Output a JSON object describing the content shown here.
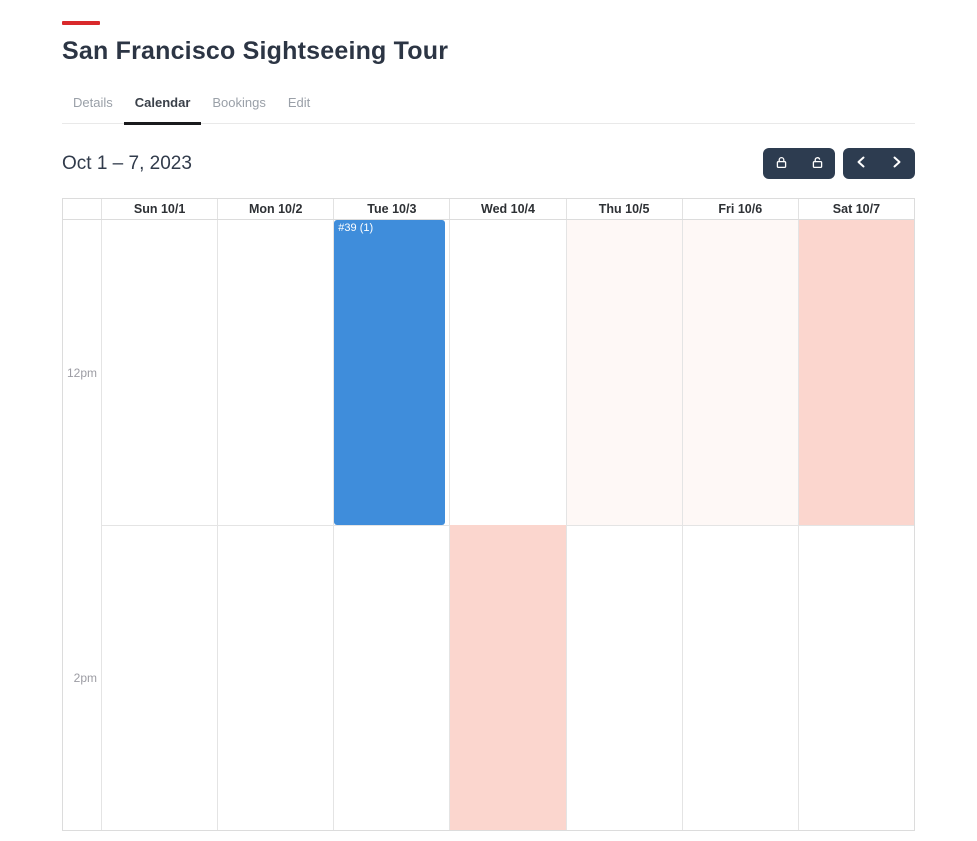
{
  "header": {
    "title": "San Francisco Sightseeing Tour"
  },
  "tabs": [
    {
      "label": "Details",
      "active": false
    },
    {
      "label": "Calendar",
      "active": true
    },
    {
      "label": "Bookings",
      "active": false
    },
    {
      "label": "Edit",
      "active": false
    }
  ],
  "toolbar": {
    "date_range": "Oct 1 – 7, 2023",
    "buttons": [
      {
        "name": "lock",
        "icon": "lock-icon"
      },
      {
        "name": "unlock",
        "icon": "unlock-icon"
      },
      {
        "name": "previous-week",
        "icon": "chevron-left-icon"
      },
      {
        "name": "next-week",
        "icon": "chevron-right-icon"
      }
    ]
  },
  "calendar": {
    "day_headers": [
      "Sun 10/1",
      "Mon 10/2",
      "Tue 10/3",
      "Wed 10/4",
      "Thu 10/5",
      "Fri 10/6",
      "Sat 10/7"
    ],
    "time_labels": [
      "12pm",
      "2pm"
    ],
    "events": [
      {
        "name": "booking-39",
        "type": "booking",
        "label": "#39 (1)",
        "day": 2,
        "slot": 0,
        "color": "#3f8ddb",
        "opacity": 1
      },
      {
        "name": "availability-sat",
        "type": "background",
        "label": "",
        "day": 6,
        "slot": 0,
        "color": "#fbd6ce",
        "opacity": 1
      },
      {
        "name": "availability-wed",
        "type": "background",
        "label": "",
        "day": 3,
        "slot": 1,
        "color": "#fbd6ce",
        "opacity": 1
      },
      {
        "name": "availability-thu",
        "type": "background",
        "label": "",
        "day": 4,
        "slot": 0,
        "color": "#fbd6ce",
        "opacity": 0.18
      },
      {
        "name": "availability-fri",
        "type": "background",
        "label": "",
        "day": 5,
        "slot": 0,
        "color": "#fbd6ce",
        "opacity": 0.18
      }
    ],
    "colors": {
      "accent_red": "#d9292b",
      "button_navy": "#2d3c50",
      "booking_blue": "#3f8ddb",
      "availability_pink": "#fbd6ce",
      "grid_border": "#e4e4e4"
    }
  }
}
